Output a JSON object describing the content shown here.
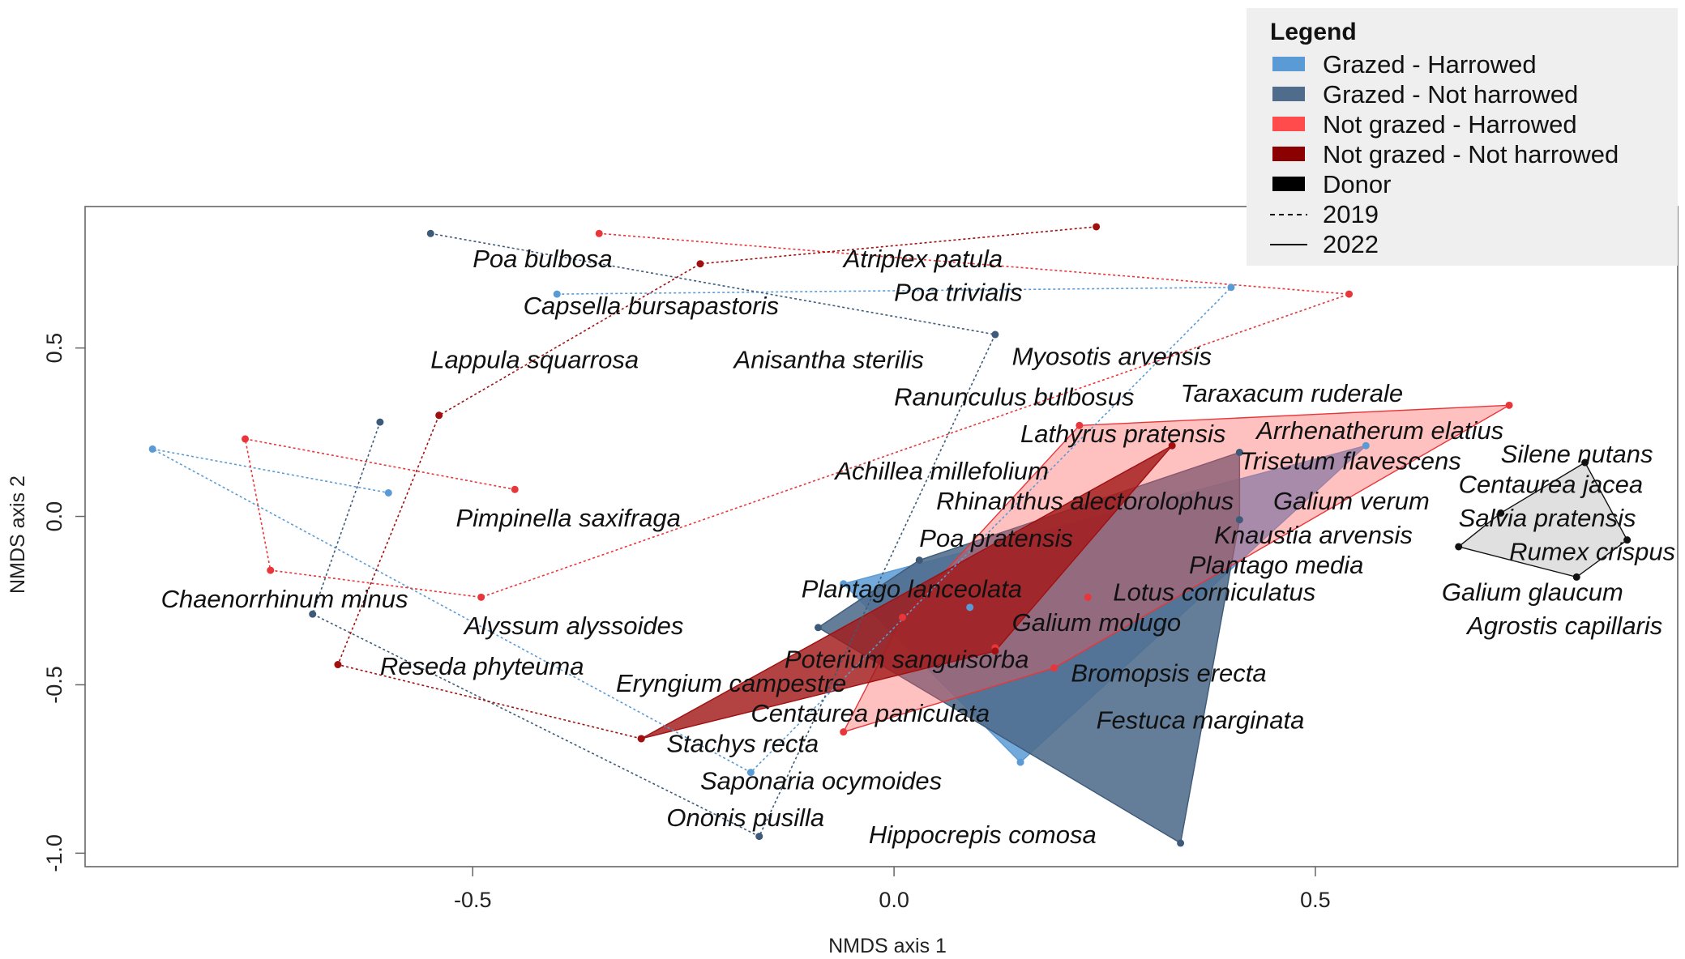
{
  "chart_data": {
    "type": "scatter",
    "title": "",
    "xlabel": "NMDS axis 1",
    "ylabel": "NMDS axis 2",
    "xlim": [
      -0.96,
      0.93
    ],
    "ylim": [
      -1.04,
      0.92
    ],
    "xticks": [
      -0.5,
      0.0,
      0.5
    ],
    "yticks": [
      -1.0,
      -0.5,
      0.0,
      0.5
    ],
    "xtick_labels": [
      "-0.5",
      "0.0",
      "0.5"
    ],
    "ytick_labels": [
      "-1.0",
      "-0.5",
      "0.0",
      "0.5"
    ],
    "legend": {
      "title": "Legend",
      "position": "top-right",
      "entries": [
        {
          "label": "Grazed - Harrowed",
          "color": "#5b9bd5",
          "kind": "fill"
        },
        {
          "label": "Grazed - Not harrowed",
          "color": "#4f6c8c",
          "kind": "fill"
        },
        {
          "label": "Not grazed  - Harrowed",
          "color": "#ff4b4b",
          "kind": "fill"
        },
        {
          "label": "Not grazed - Not harrowed",
          "color": "#8b0000",
          "kind": "fill"
        },
        {
          "label": "Donor",
          "color": "#000000",
          "kind": "fill"
        },
        {
          "label": "2019",
          "color": "#000000",
          "kind": "dashed"
        },
        {
          "label": "2022",
          "color": "#000000",
          "kind": "solid"
        }
      ]
    },
    "series": [
      {
        "name": "Grazed - Harrowed 2019",
        "color": "#5b9bd5",
        "line": "dashed",
        "points": [
          [
            -0.4,
            0.66
          ],
          [
            0.4,
            0.68
          ],
          [
            -0.17,
            -0.76
          ],
          [
            -0.88,
            0.2
          ],
          [
            -0.6,
            0.07
          ]
        ]
      },
      {
        "name": "Grazed - Not harrowed 2019",
        "color": "#3d5a78",
        "line": "dashed",
        "points": [
          [
            -0.55,
            0.84
          ],
          [
            0.12,
            0.54
          ],
          [
            -0.16,
            -0.95
          ],
          [
            -0.69,
            -0.29
          ],
          [
            -0.61,
            0.28
          ]
        ]
      },
      {
        "name": "Not grazed - Harrowed 2019",
        "color": "#e8363a",
        "line": "dashed",
        "points": [
          [
            -0.35,
            0.84
          ],
          [
            0.54,
            0.66
          ],
          [
            -0.49,
            -0.24
          ],
          [
            -0.74,
            -0.16
          ],
          [
            -0.77,
            0.23
          ],
          [
            -0.45,
            0.08
          ]
        ]
      },
      {
        "name": "Not grazed - Not harrowed 2019",
        "color": "#a01010",
        "line": "dashed",
        "points": [
          [
            0.24,
            0.86
          ],
          [
            -0.23,
            0.75
          ],
          [
            -0.54,
            0.3
          ],
          [
            -0.66,
            -0.44
          ],
          [
            -0.3,
            -0.66
          ]
        ]
      },
      {
        "name": "Grazed - Harrowed 2022",
        "color": "#5b9bd5",
        "fill": "#5b9bd5",
        "opacity": 0.85,
        "line": "solid",
        "points": [
          [
            -0.06,
            -0.2
          ],
          [
            0.56,
            0.21
          ],
          [
            0.15,
            -0.73
          ],
          [
            0.09,
            -0.27
          ]
        ]
      },
      {
        "name": "Grazed - Not harrowed 2022",
        "color": "#3d5a78",
        "fill": "#4f6c8c",
        "opacity": 0.88,
        "line": "solid",
        "points": [
          [
            -0.09,
            -0.33
          ],
          [
            0.41,
            0.19
          ],
          [
            0.34,
            -0.97
          ],
          [
            0.03,
            -0.13
          ],
          [
            0.41,
            -0.01
          ]
        ]
      },
      {
        "name": "Not grazed - Harrowed 2022",
        "color": "#e8363a",
        "fill": "#ff5a5a",
        "opacity": 0.38,
        "line": "solid",
        "points": [
          [
            -0.06,
            -0.64
          ],
          [
            0.22,
            0.27
          ],
          [
            0.73,
            0.33
          ],
          [
            0.01,
            -0.3
          ],
          [
            0.12,
            -0.39
          ],
          [
            0.19,
            -0.45
          ],
          [
            0.23,
            -0.24
          ]
        ]
      },
      {
        "name": "Not grazed - Not harrowed 2022",
        "color": "#a01010",
        "fill": "#a21a1a",
        "opacity": 0.82,
        "line": "solid",
        "points": [
          [
            -0.3,
            -0.66
          ],
          [
            0.33,
            0.21
          ],
          [
            0.12,
            -0.4
          ]
        ]
      },
      {
        "name": "Donor",
        "color": "#111111",
        "fill": "#dddddd",
        "opacity": 0.9,
        "line": "solid",
        "points": [
          [
            0.82,
            0.16
          ],
          [
            0.87,
            -0.07
          ],
          [
            0.81,
            -0.18
          ],
          [
            0.67,
            -0.09
          ],
          [
            0.72,
            0.01
          ]
        ]
      }
    ],
    "species_labels": [
      {
        "text": "Poa bulbosa",
        "x": -0.5,
        "y": 0.74
      },
      {
        "text": "Atriplex patula",
        "x": -0.06,
        "y": 0.74
      },
      {
        "text": "Poa trivialis",
        "x": 0.0,
        "y": 0.64
      },
      {
        "text": "Capsella bursapastoris",
        "x": -0.44,
        "y": 0.6
      },
      {
        "text": "Lappula squarrosa",
        "x": -0.55,
        "y": 0.44
      },
      {
        "text": "Anisantha sterilis",
        "x": -0.19,
        "y": 0.44
      },
      {
        "text": "Myosotis arvensis",
        "x": 0.14,
        "y": 0.45
      },
      {
        "text": "Ranunculus bulbosus",
        "x": 0.0,
        "y": 0.33
      },
      {
        "text": "Taraxacum ruderale",
        "x": 0.34,
        "y": 0.34
      },
      {
        "text": "Lathyrus pratensis",
        "x": 0.15,
        "y": 0.22
      },
      {
        "text": "Arrhenatherum elatius",
        "x": 0.43,
        "y": 0.23
      },
      {
        "text": "Silene nutans",
        "x": 0.72,
        "y": 0.16
      },
      {
        "text": "Trisetum flavescens",
        "x": 0.41,
        "y": 0.14
      },
      {
        "text": "Achillea millefolium",
        "x": -0.07,
        "y": 0.11
      },
      {
        "text": "Centaurea jacea",
        "x": 0.67,
        "y": 0.07
      },
      {
        "text": "Rhinanthus alectorolophus",
        "x": 0.05,
        "y": 0.02
      },
      {
        "text": "Galium verum",
        "x": 0.45,
        "y": 0.02
      },
      {
        "text": "Pimpinella saxifraga",
        "x": -0.52,
        "y": -0.03
      },
      {
        "text": "Salvia pratensis",
        "x": 0.67,
        "y": -0.03
      },
      {
        "text": "Knaustia arvensis",
        "x": 0.38,
        "y": -0.08
      },
      {
        "text": "Poa pratensis",
        "x": 0.03,
        "y": -0.09
      },
      {
        "text": "Rumex crispus",
        "x": 0.73,
        "y": -0.13
      },
      {
        "text": "Plantago media",
        "x": 0.35,
        "y": -0.17
      },
      {
        "text": "Plantago lanceolata",
        "x": -0.11,
        "y": -0.24
      },
      {
        "text": "Lotus corniculatus",
        "x": 0.26,
        "y": -0.25
      },
      {
        "text": "Galium glaucum",
        "x": 0.65,
        "y": -0.25
      },
      {
        "text": "Chaenorrhinum minus",
        "x": -0.87,
        "y": -0.27
      },
      {
        "text": "Galium molugo",
        "x": 0.14,
        "y": -0.34
      },
      {
        "text": "Alyssum alyssoides",
        "x": -0.51,
        "y": -0.35
      },
      {
        "text": "Agrostis capillaris",
        "x": 0.68,
        "y": -0.35
      },
      {
        "text": "Poterium sanguisorba",
        "x": -0.13,
        "y": -0.45
      },
      {
        "text": "Reseda phyteuma",
        "x": -0.61,
        "y": -0.47
      },
      {
        "text": "Bromopsis erecta",
        "x": 0.21,
        "y": -0.49
      },
      {
        "text": "Eryngium campestre",
        "x": -0.33,
        "y": -0.52
      },
      {
        "text": "Centaurea paniculata",
        "x": -0.17,
        "y": -0.61
      },
      {
        "text": "Festuca marginata",
        "x": 0.24,
        "y": -0.63
      },
      {
        "text": "Stachys recta",
        "x": -0.27,
        "y": -0.7
      },
      {
        "text": "Saponaria ocymoides",
        "x": -0.23,
        "y": -0.81
      },
      {
        "text": "Ononis pusilla",
        "x": -0.27,
        "y": -0.92
      },
      {
        "text": "Hippocrepis comosa",
        "x": -0.03,
        "y": -0.97
      }
    ]
  }
}
